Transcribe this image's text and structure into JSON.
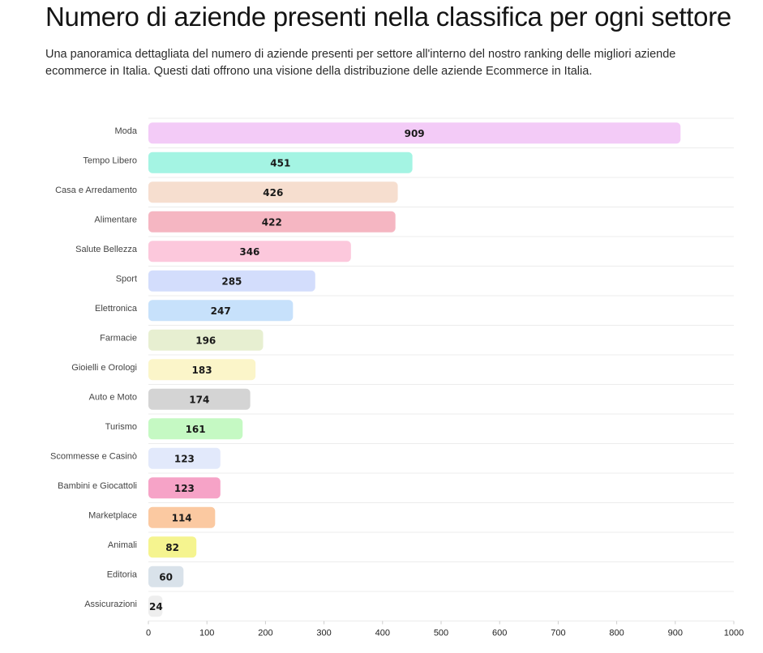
{
  "header": {
    "title": "Numero di aziende presenti nella classifica per ogni settore",
    "subtitle": "Una panoramica dettagliata del numero di aziende presenti per settore all'interno del nostro ranking delle migliori aziende ecommerce in Italia. Questi dati offrono una visione della distribuzione delle aziende Ecommerce in Italia."
  },
  "chart_data": {
    "type": "bar",
    "orientation": "horizontal",
    "categories": [
      "Moda",
      "Tempo Libero",
      "Casa e Arredamento",
      "Alimentare",
      "Salute Bellezza",
      "Sport",
      "Elettronica",
      "Farmacie",
      "Gioielli e Orologi",
      "Auto e Moto",
      "Turismo",
      "Scommesse e Casinò",
      "Bambini e Giocattoli",
      "Marketplace",
      "Animali",
      "Editoria",
      "Assicurazioni"
    ],
    "values": [
      909,
      451,
      426,
      422,
      346,
      285,
      247,
      196,
      183,
      174,
      161,
      123,
      123,
      114,
      82,
      60,
      24
    ],
    "colors": [
      "#f3cbf7",
      "#a4f4e3",
      "#f6decf",
      "#f5b6c2",
      "#fcc8dc",
      "#d3ddfc",
      "#c7e1fb",
      "#e7efd1",
      "#fbf5c9",
      "#d4d4d4",
      "#c5f9c3",
      "#e2e9fb",
      "#f6a3c7",
      "#fbc9a1",
      "#f5f48f",
      "#d9e2ea",
      "#eeeeee"
    ],
    "xlim": [
      0,
      1000
    ],
    "xticks": [
      0,
      100,
      200,
      300,
      400,
      500,
      600,
      700,
      800,
      900,
      1000
    ],
    "grid": "horizontal",
    "data_labels": true,
    "legend": "none"
  }
}
